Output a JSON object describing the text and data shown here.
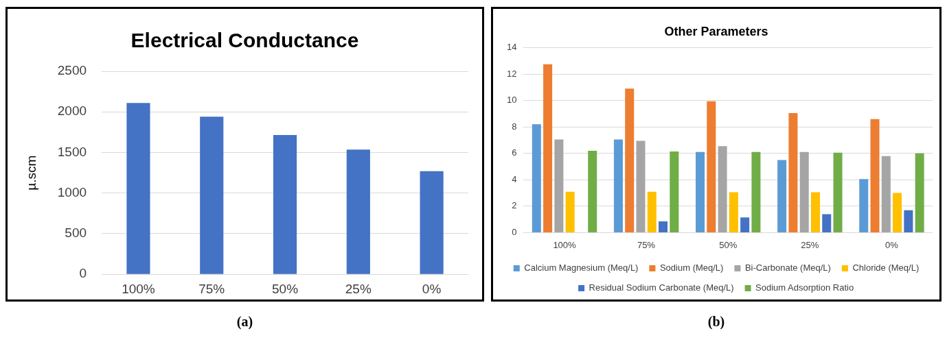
{
  "chart_data": [
    {
      "type": "bar",
      "title": "Electrical Conductance",
      "ylabel": "µ.scm",
      "categories": [
        "100%",
        "75%",
        "50%",
        "25%",
        "0%"
      ],
      "values": [
        2110,
        1940,
        1715,
        1535,
        1270
      ],
      "color": "#4472c4",
      "ylim": [
        0,
        2500
      ],
      "yticks": [
        0,
        500,
        1000,
        1500,
        2000,
        2500
      ],
      "grid": "y",
      "annotations": [
        "(a)"
      ]
    },
    {
      "type": "bar",
      "title": "Other Parameters",
      "categories": [
        "100%",
        "75%",
        "50%",
        "25%",
        "0%"
      ],
      "series": [
        {
          "name": "Calcium Magnesium (Meq/L)",
          "color": "#5b9bd5",
          "values": [
            8.2,
            7.05,
            6.1,
            5.5,
            4.05
          ]
        },
        {
          "name": "Sodium (Meq/L)",
          "color": "#ed7d31",
          "values": [
            12.75,
            10.9,
            9.95,
            9.05,
            8.6
          ]
        },
        {
          "name": "Bi-Carbonate (Meq/L)",
          "color": "#a5a5a5",
          "values": [
            7.05,
            6.95,
            6.55,
            6.1,
            5.8
          ]
        },
        {
          "name": "Chloride (Meq/L)",
          "color": "#ffc000",
          "values": [
            3.1,
            3.1,
            3.05,
            3.05,
            3.0
          ]
        },
        {
          "name": "Residual Sodium Carbonate (Meq/L)",
          "color": "#4472c4",
          "values": [
            null,
            0.85,
            1.15,
            1.4,
            1.7
          ]
        },
        {
          "name": "Sodium Adsorption Ratio",
          "color": "#70ad47",
          "values": [
            6.2,
            6.15,
            6.1,
            6.05,
            6.0
          ]
        }
      ],
      "ylim": [
        0,
        14
      ],
      "yticks": [
        0,
        2,
        4,
        6,
        8,
        10,
        12,
        14
      ],
      "grid": "y",
      "legend": "bottom",
      "annotations": [
        "(b)"
      ]
    }
  ]
}
